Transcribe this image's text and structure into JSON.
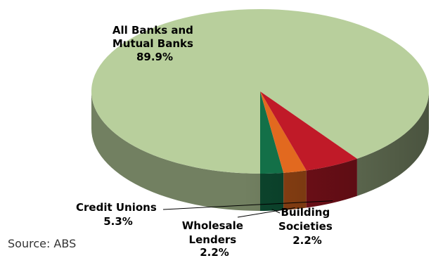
{
  "chart_data": {
    "type": "pie",
    "title": "",
    "slices": [
      {
        "label_lines": [
          "All Banks and",
          "Mutual Banks"
        ],
        "value_label": "89.9%",
        "value": 89.9,
        "color": "#b8cf9c"
      },
      {
        "label_lines": [
          "Building",
          "Societies"
        ],
        "value_label": "2.2%",
        "value": 2.2,
        "color": "#137048"
      },
      {
        "label_lines": [
          "Wholesale",
          "Lenders"
        ],
        "value_label": "2.2%",
        "value": 2.2,
        "color": "#e2691f"
      },
      {
        "label_lines": [
          "Credit Unions"
        ],
        "value_label": "5.3%",
        "value": 5.3,
        "color": "#c01a28"
      }
    ],
    "legend": "none"
  },
  "source_text": "Source: ABS"
}
